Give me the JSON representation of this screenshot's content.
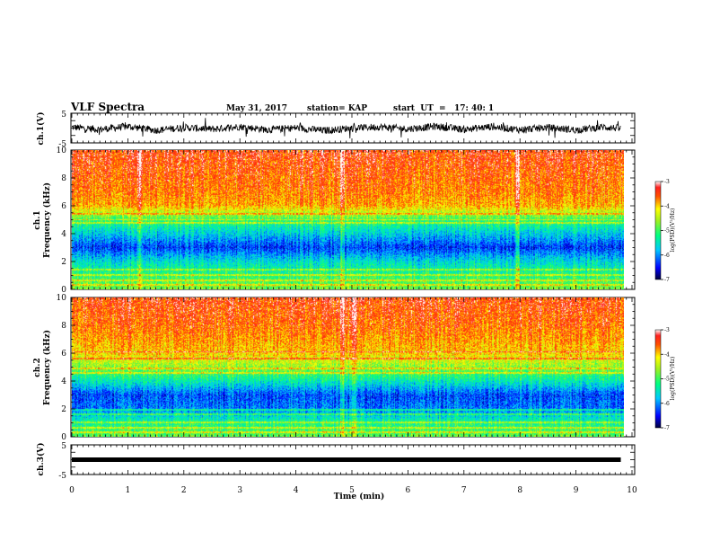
{
  "header": {
    "title": "VLF Spectra",
    "date": "May 31, 2017",
    "station": "station= KAP",
    "start_ut": "start  UT  =   17: 40: 1"
  },
  "chart_data": [
    {
      "type": "line",
      "panel": "ch1-waveform",
      "ylabel": "ch.1(V)",
      "ylim": [
        -5,
        5
      ],
      "yticks": [
        "5",
        "-5"
      ],
      "xlim": [
        0,
        10
      ],
      "series": [
        {
          "x": [
            0,
            0.5,
            1,
            1.5,
            2,
            2.5,
            3,
            3.5,
            4,
            4.5,
            5,
            5.5,
            6,
            6.5,
            7,
            7.5,
            8,
            8.5,
            9,
            9.5,
            9.8
          ],
          "y": [
            0.3,
            -0.5,
            0.6,
            -0.8,
            0.2,
            -0.4,
            0.5,
            -0.6,
            0.1,
            -0.9,
            0.0,
            0.4,
            -0.3,
            0.6,
            -0.5,
            0.5,
            -0.6,
            0.2,
            -0.7,
            0.4,
            -0.2
          ],
          "color": "#000000"
        }
      ]
    },
    {
      "type": "heatmap",
      "panel": "ch1-spectrogram",
      "ylabel": "ch.1\nFrequency (kHz)",
      "ylim": [
        0,
        10
      ],
      "yticks": [
        "0",
        "2",
        "4",
        "6",
        "8",
        "10"
      ],
      "xlim": [
        0,
        10
      ],
      "data_end_min": 9.8,
      "value_label": "log(PSD)(V²/Hz)",
      "clim": [
        -7,
        -3
      ],
      "cticks": [
        "-3",
        "-4",
        "-5",
        "-6",
        "-7"
      ],
      "freq_khz": [
        0,
        1,
        2,
        3,
        4,
        5,
        6,
        7,
        8,
        9,
        10
      ],
      "mean_log_psd": [
        -4.6,
        -5.0,
        -5.5,
        -6.3,
        -5.6,
        -4.9,
        -3.7,
        -3.5,
        -3.4,
        -3.3,
        -3.2
      ],
      "lines_khz": [
        0.3,
        0.6,
        1.0,
        1.4,
        4.8,
        5.0,
        5.4
      ],
      "bright_columns_min": [
        1.2,
        4.8,
        7.9
      ]
    },
    {
      "type": "heatmap",
      "panel": "ch2-spectrogram",
      "ylabel": "ch.2\nFrequency (kHz)",
      "ylim": [
        0,
        10
      ],
      "yticks": [
        "0",
        "2",
        "4",
        "6",
        "8",
        "10"
      ],
      "xlim": [
        0,
        10
      ],
      "data_end_min": 9.8,
      "value_label": "log(PSD)(V²/Hz)",
      "clim": [
        -7,
        -3
      ],
      "cticks": [
        "-3",
        "-4",
        "-5",
        "-6",
        "-7"
      ],
      "freq_khz": [
        0,
        1,
        2,
        3,
        4,
        5,
        6,
        7,
        8,
        9,
        10
      ],
      "mean_log_psd": [
        -4.7,
        -5.1,
        -6.0,
        -6.2,
        -5.3,
        -4.5,
        -3.8,
        -3.6,
        -3.4,
        -3.3,
        -3.2
      ],
      "lines_khz": [
        0.3,
        0.6,
        1.0,
        1.6,
        1.9,
        4.6,
        4.9,
        5.6,
        6.1
      ],
      "bright_columns_min": [
        4.8,
        5.0
      ]
    },
    {
      "type": "line",
      "panel": "ch3-waveform",
      "ylabel": "ch.3(V)",
      "ylim": [
        -5,
        5
      ],
      "yticks": [
        "5",
        "-5"
      ],
      "xlim": [
        0,
        10
      ],
      "xlabel": "Time (min)",
      "xticks": [
        "0",
        "1",
        "2",
        "3",
        "4",
        "5",
        "6",
        "7",
        "8",
        "9",
        "10"
      ],
      "series": [
        {
          "x": [
            0,
            9.8
          ],
          "y": [
            0,
            0
          ],
          "color": "#000000"
        }
      ]
    }
  ]
}
